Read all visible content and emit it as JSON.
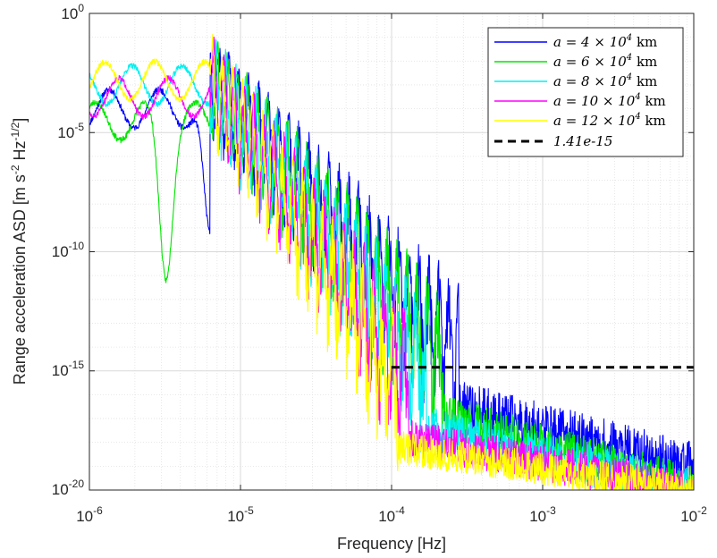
{
  "chart_data": {
    "type": "line",
    "xscale": "log",
    "yscale": "log",
    "xlim": [
      1e-06,
      0.01
    ],
    "ylim": [
      1e-20,
      1
    ],
    "grid": true,
    "xlabel": "Frequency [Hz]",
    "ylabel": "Range acceleration ASD [m s^-2 Hz^-1/2]",
    "ylabel_parts": {
      "a": "Range acceleration ASD [m s",
      "b": "-2",
      "c": " Hz",
      "d": "-1/2",
      "e": "]"
    },
    "x_ticks": [
      {
        "value": 1e-06,
        "base": "10",
        "exp": "-6"
      },
      {
        "value": 1e-05,
        "base": "10",
        "exp": "-5"
      },
      {
        "value": 0.0001,
        "base": "10",
        "exp": "-4"
      },
      {
        "value": 0.001,
        "base": "10",
        "exp": "-3"
      },
      {
        "value": 0.01,
        "base": "10",
        "exp": "-2"
      }
    ],
    "y_ticks": [
      {
        "value": 1,
        "base": "10",
        "exp": "0"
      },
      {
        "value": 1e-05,
        "base": "10",
        "exp": "-5"
      },
      {
        "value": 1e-10,
        "base": "10",
        "exp": "-10"
      },
      {
        "value": 1e-15,
        "base": "10",
        "exp": "-15"
      },
      {
        "value": 1e-20,
        "base": "10",
        "exp": "-20"
      }
    ],
    "legend_position": "top-right",
    "series": [
      {
        "name": "a = 4 × 10^4 km",
        "label_main": "a = 4 × 10",
        "label_sup": "4",
        "label_unit": " km",
        "color": "#0000ff",
        "seed": 11,
        "low_level": 0.0001,
        "dip_freq": 6.3e-06,
        "cut_freq": 0.00028,
        "floor_at_cut": 3e-17,
        "floor_at_end": 8e-20,
        "floor_band": 2.2
      },
      {
        "name": "a = 6 × 10^4 km",
        "label_main": "a = 6 × 10",
        "label_sup": "4",
        "label_unit": " km",
        "color": "#00e600",
        "seed": 23,
        "low_level": 3e-05,
        "dip_freq": 3.2e-06,
        "cut_freq": 0.00022,
        "floor_at_cut": 1.2e-17,
        "floor_at_end": 1e-20,
        "floor_band": 2.0
      },
      {
        "name": "a = 8 × 10^4 km",
        "label_main": "a = 8 × 10",
        "label_sup": "4",
        "label_unit": " km",
        "color": "#00f0f0",
        "seed": 37,
        "low_level": 0.001,
        "dip_freq": 0,
        "cut_freq": 0.00017,
        "floor_at_cut": 4e-18,
        "floor_at_end": 1e-20,
        "floor_band": 1.8
      },
      {
        "name": "a = 10 × 10^4 km",
        "label_main": "a = 10 × 10",
        "label_sup": "4",
        "label_unit": " km",
        "color": "#ff00ff",
        "seed": 51,
        "low_level": 0.0003,
        "dip_freq": 0,
        "cut_freq": 0.00013,
        "floor_at_cut": 1.5e-18,
        "floor_at_end": 1e-20,
        "floor_band": 1.6
      },
      {
        "name": "a = 12 × 10^4 km",
        "label_main": "a = 12 × 10",
        "label_sup": "4",
        "label_unit": " km",
        "color": "#ffff00",
        "seed": 67,
        "low_level": 0.0015,
        "dip_freq": 0,
        "cut_freq": 0.00011,
        "floor_at_cut": 6e-19,
        "floor_at_end": 1e-20,
        "floor_band": 1.4
      }
    ],
    "threshold": {
      "name": "1.41e-15",
      "label": "1.41e-15",
      "value": 1.41e-15,
      "x_start": 0.0001,
      "x_end": 0.01,
      "color": "#000000"
    }
  }
}
